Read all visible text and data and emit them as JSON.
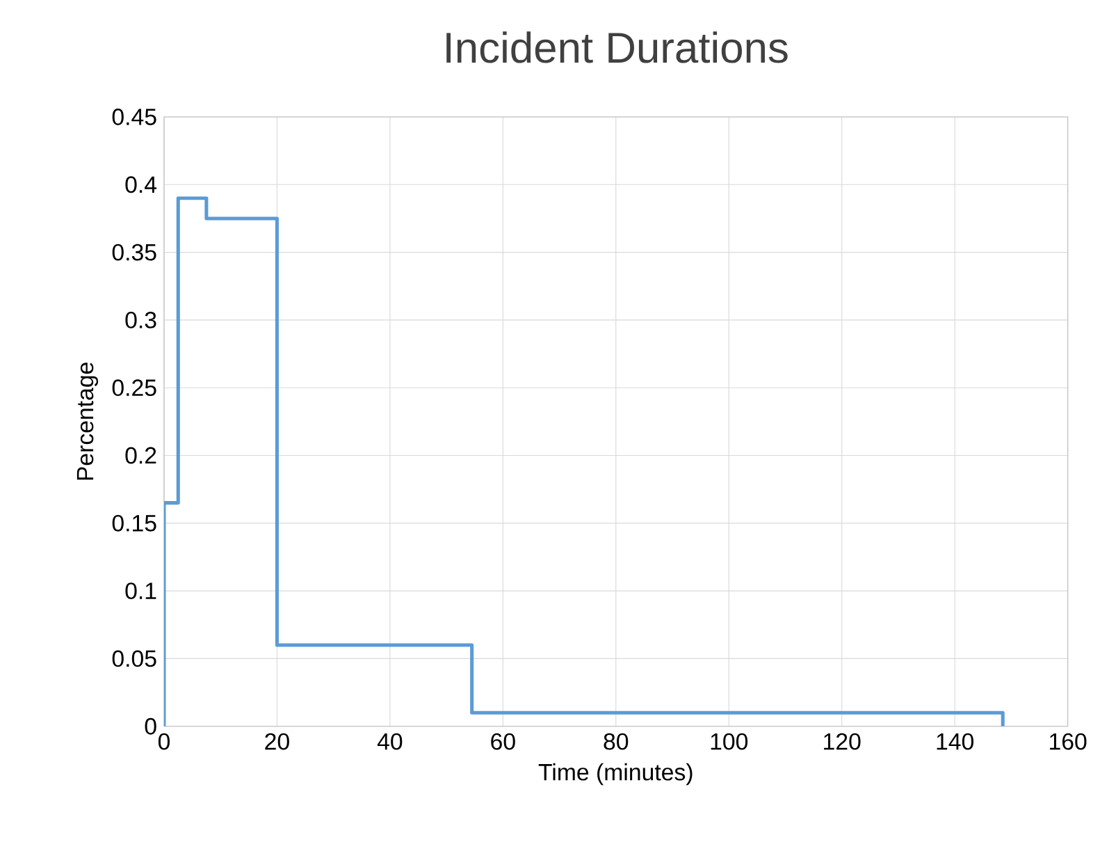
{
  "chart_data": {
    "type": "step",
    "title": "Incident Durations",
    "xlabel": "Time (minutes)",
    "ylabel": "Percentage",
    "x": [
      0,
      0,
      2.5,
      7.5,
      20,
      54.5,
      148.5
    ],
    "values": [
      0,
      0.165,
      0.39,
      0.375,
      0.06,
      0.01,
      0
    ],
    "color": "#5b9bd5",
    "xlim": [
      0,
      160
    ],
    "ylim": [
      0,
      0.45
    ],
    "xticks": [
      0,
      20,
      40,
      60,
      80,
      100,
      120,
      140,
      160
    ],
    "yticks": [
      0,
      0.05,
      0.1,
      0.15,
      0.2,
      0.25,
      0.3,
      0.35,
      0.4,
      0.45
    ],
    "grid": true
  }
}
